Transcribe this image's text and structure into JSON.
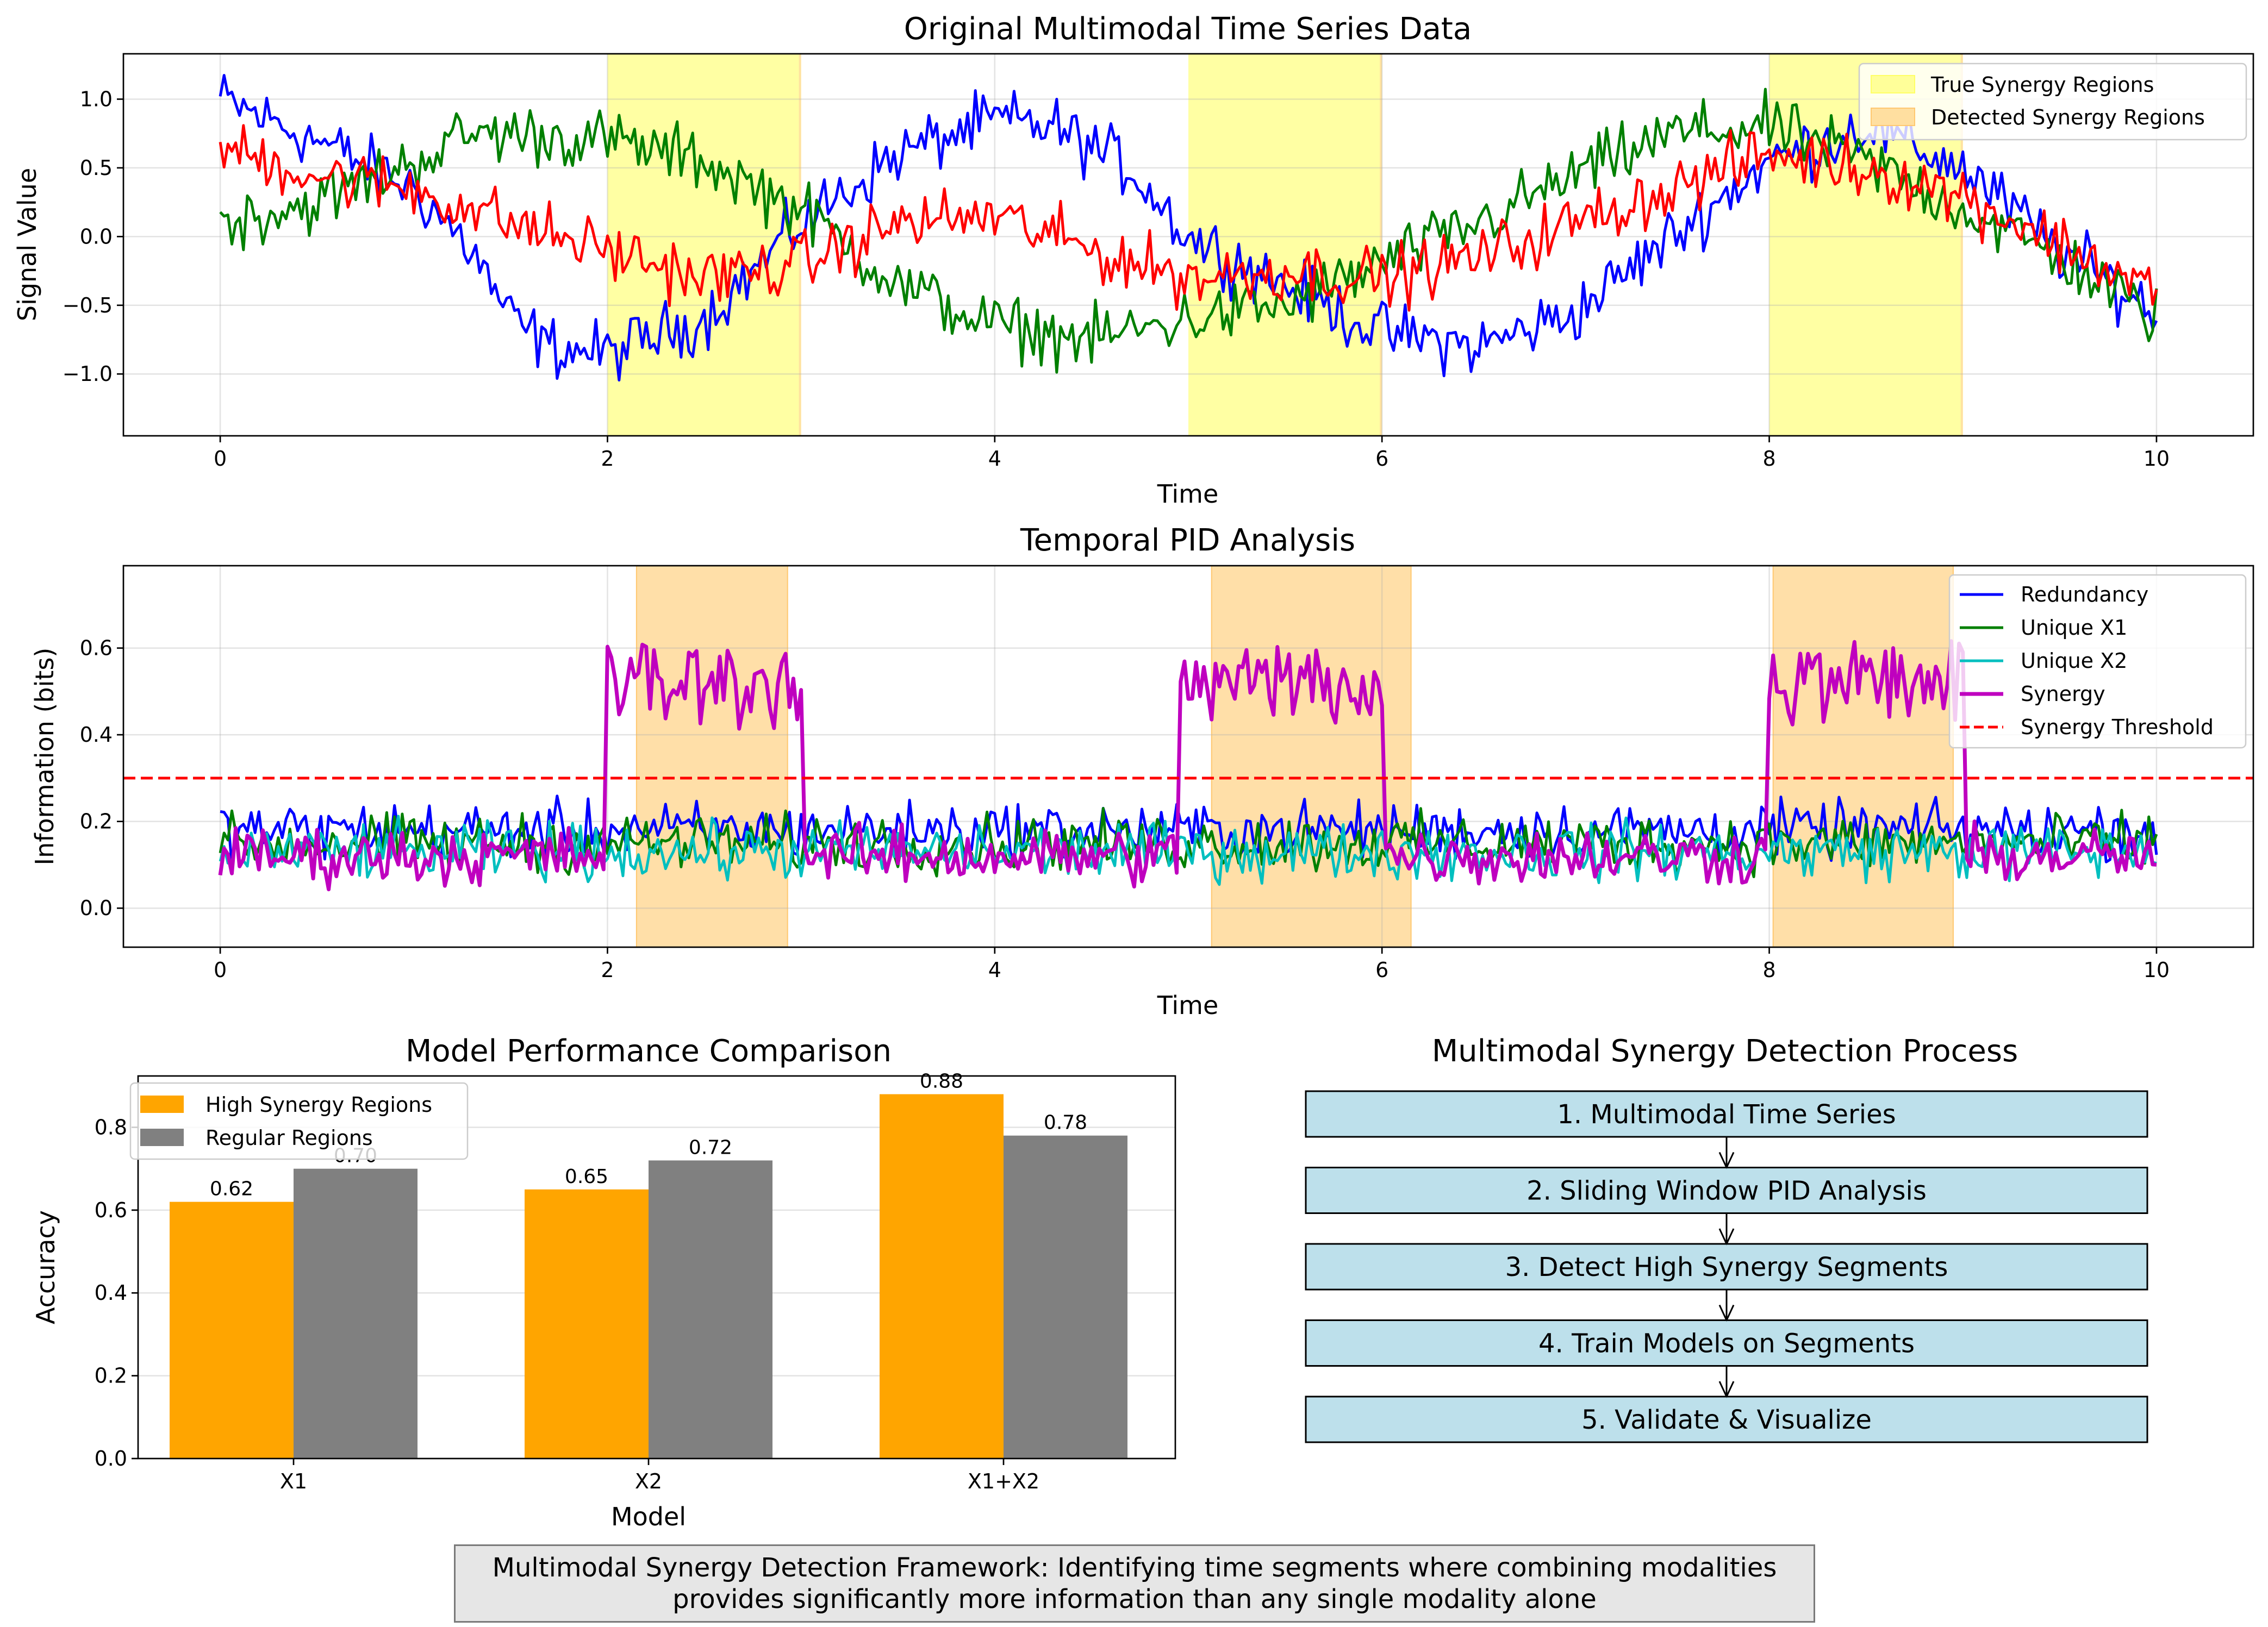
{
  "chart_data": [
    {
      "type": "line",
      "title": "Original Multimodal Time Series Data",
      "xlabel": "Time",
      "ylabel": "Signal Value",
      "xlim": [
        -0.5,
        10.5
      ],
      "ylim": [
        -1.45,
        1.33
      ],
      "xticks": [
        "0",
        "2",
        "4",
        "6",
        "8",
        "10"
      ],
      "yticks": [
        "1.0",
        "0.5",
        "0.0",
        "−0.5",
        "−1.0"
      ],
      "grid": true,
      "legend_position": "top-right",
      "legend": [
        {
          "label": "True Synergy Regions",
          "color": "#ffff99"
        },
        {
          "label": "Detected Synergy Regions",
          "color": "#ffdfa0"
        }
      ],
      "true_synergy_regions": [
        [
          2.0,
          3.0
        ],
        [
          5.0,
          6.0
        ],
        [
          8.0,
          9.0
        ]
      ],
      "series": [
        {
          "color": "#0000ff",
          "x": [
            0,
            0.5,
            1,
            1.3,
            1.5,
            1.7,
            2,
            2.5,
            3,
            3.5,
            4,
            4.3,
            4.7,
            5,
            5.5,
            6,
            6.5,
            7,
            7.5,
            8,
            8.5,
            9,
            9.5,
            10
          ],
          "y": [
            1.0,
            0.7,
            0.35,
            -0.1,
            -0.6,
            -0.8,
            -0.85,
            -0.6,
            0.1,
            0.6,
            0.85,
            0.8,
            0.5,
            0.0,
            -0.35,
            -0.7,
            -0.8,
            -0.55,
            0.0,
            0.55,
            0.8,
            0.5,
            -0.1,
            -0.55
          ]
        },
        {
          "color": "#008000",
          "x": [
            0,
            0.5,
            1,
            1.3,
            1.5,
            2,
            2.5,
            3,
            3.5,
            4,
            4.5,
            5,
            5.5,
            6,
            6.5,
            7,
            7.5,
            8,
            8.5,
            9,
            9.5,
            10
          ],
          "y": [
            0.1,
            0.25,
            0.55,
            0.75,
            0.75,
            0.7,
            0.55,
            0.2,
            -0.35,
            -0.65,
            -0.75,
            -0.6,
            -0.5,
            -0.2,
            0.1,
            0.45,
            0.75,
            0.8,
            0.55,
            0.2,
            -0.15,
            -0.6
          ]
        },
        {
          "color": "#ff0000",
          "x": [
            0,
            0.5,
            1,
            1.5,
            2,
            2.5,
            3,
            3.5,
            4,
            4.5,
            5,
            5.5,
            6,
            6.5,
            7,
            7.5,
            8,
            8.5,
            9,
            9.5,
            10
          ],
          "y": [
            0.65,
            0.45,
            0.35,
            0.1,
            -0.1,
            -0.3,
            -0.2,
            0.1,
            0.15,
            -0.1,
            -0.3,
            -0.25,
            -0.3,
            -0.15,
            0.1,
            0.35,
            0.6,
            0.5,
            0.3,
            -0.05,
            -0.4
          ]
        }
      ]
    },
    {
      "type": "line",
      "title": "Temporal PID Analysis",
      "xlabel": "Time",
      "ylabel": "Information (bits)",
      "xlim": [
        -0.5,
        10.5
      ],
      "ylim": [
        -0.09,
        0.79
      ],
      "xticks": [
        "0",
        "2",
        "4",
        "6",
        "8",
        "10"
      ],
      "yticks": [
        "0.6",
        "0.4",
        "0.2",
        "0.0"
      ],
      "grid": true,
      "legend_position": "top-right",
      "detected_synergy_regions": [
        [
          2.15,
          2.93
        ],
        [
          5.12,
          6.15
        ],
        [
          8.02,
          8.95
        ]
      ],
      "threshold": {
        "label": "Synergy Threshold",
        "value": 0.3,
        "color": "#ff0000"
      },
      "series": [
        {
          "name": "Redundancy",
          "color": "#0000ff",
          "mean": 0.18
        },
        {
          "name": "Unique X1",
          "color": "#008000",
          "mean": 0.15
        },
        {
          "name": "Unique X2",
          "color": "#00bfbf",
          "mean": 0.13
        },
        {
          "name": "Synergy",
          "color": "#bf00bf",
          "mean": 0.12,
          "high_mean": 0.52
        }
      ]
    },
    {
      "type": "bar",
      "title": "Model Performance Comparison",
      "xlabel": "Model",
      "ylabel": "Accuracy",
      "ylim": [
        0,
        0.924
      ],
      "categories": [
        "X1",
        "X2",
        "X1+X2"
      ],
      "yticks": [
        "0.0",
        "0.2",
        "0.4",
        "0.6",
        "0.8"
      ],
      "grid": true,
      "legend_position": "top-left",
      "series": [
        {
          "name": "High Synergy Regions",
          "color": "#ffa500",
          "values": [
            0.62,
            0.65,
            0.88
          ],
          "labels": [
            "0.62",
            "0.65",
            "0.88"
          ]
        },
        {
          "name": "Regular Regions",
          "color": "#808080",
          "values": [
            0.7,
            0.72,
            0.78
          ],
          "labels": [
            "0.70",
            "0.72",
            "0.78"
          ]
        }
      ]
    }
  ],
  "flow": {
    "title": "Multimodal Synergy Detection Process",
    "steps": [
      "1. Multimodal Time Series",
      "2. Sliding Window PID Analysis",
      "3. Detect High Synergy Segments",
      "4. Train Models on Segments",
      "5. Validate & Visualize"
    ],
    "box_color": "#add8e6"
  },
  "caption": {
    "line1": "Multimodal Synergy Detection Framework: Identifying time segments where combining modalities",
    "line2": "provides significantly more information than any single modality alone"
  }
}
